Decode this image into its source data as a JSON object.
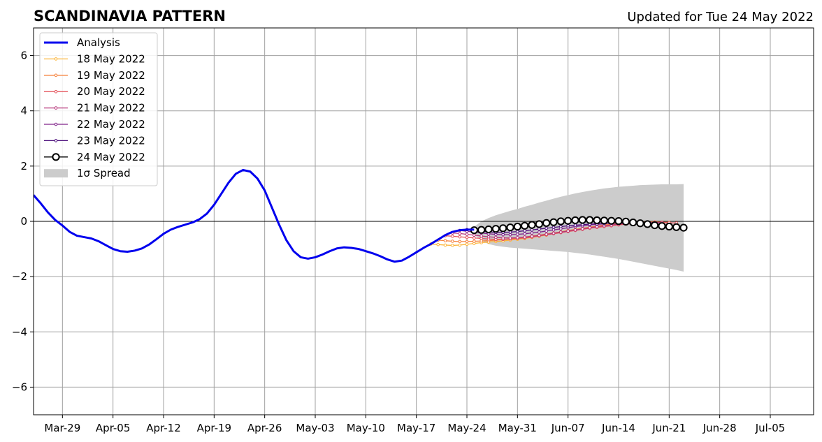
{
  "chart_data": {
    "type": "line",
    "title": "SCANDINAVIA PATTERN",
    "subtitle": "Updated for Tue 24 May 2022",
    "xlabel": "",
    "ylabel": "",
    "xlim": [
      "2022-03-25",
      "2022-07-11"
    ],
    "ylim": [
      -7,
      7
    ],
    "grid": true,
    "legend_position": "top-left",
    "x_ticks": [
      "Mar-29",
      "Apr-05",
      "Apr-12",
      "Apr-19",
      "Apr-26",
      "May-03",
      "May-10",
      "May-17",
      "May-24",
      "May-31",
      "Jun-07",
      "Jun-14",
      "Jun-21",
      "Jun-28",
      "Jul-05"
    ],
    "y_ticks": [
      {
        "value": 6,
        "label": "6"
      },
      {
        "value": 4,
        "label": "4"
      },
      {
        "value": 2,
        "label": "2"
      },
      {
        "value": 0,
        "label": "0"
      },
      {
        "value": -2,
        "label": "−2"
      },
      {
        "value": -4,
        "label": "−4"
      },
      {
        "value": -6,
        "label": "−6"
      }
    ],
    "legend": [
      "Analysis",
      "18 May 2022",
      "19 May 2022",
      "20 May 2022",
      "21 May 2022",
      "22 May 2022",
      "23 May 2022",
      "24 May 2022",
      "1σ Spread"
    ],
    "analysis": {
      "name": "Analysis",
      "color": "#0000ee",
      "start": "2022-03-25",
      "values": [
        0.95,
        0.65,
        0.32,
        0.05,
        -0.15,
        -0.38,
        -0.52,
        -0.57,
        -0.62,
        -0.72,
        -0.86,
        -1.0,
        -1.08,
        -1.1,
        -1.06,
        -0.98,
        -0.84,
        -0.65,
        -0.45,
        -0.3,
        -0.2,
        -0.12,
        -0.04,
        0.08,
        0.28,
        0.6,
        1.0,
        1.4,
        1.72,
        1.86,
        1.8,
        1.55,
        1.12,
        0.5,
        -0.12,
        -0.68,
        -1.08,
        -1.3,
        -1.35,
        -1.3,
        -1.2,
        -1.08,
        -0.98,
        -0.94,
        -0.96,
        -1.0,
        -1.08,
        -1.16,
        -1.26,
        -1.38,
        -1.46,
        -1.42,
        -1.28,
        -1.12,
        -0.96,
        -0.82,
        -0.66,
        -0.5,
        -0.38,
        -0.32,
        -0.3,
        -0.3
      ]
    },
    "forecasts": [
      {
        "name": "18 May 2022",
        "color": "#fcb436",
        "start": "2022-05-19",
        "values": [
          -0.82,
          -0.84,
          -0.86,
          -0.87,
          -0.86,
          -0.83,
          -0.8,
          -0.77,
          -0.75,
          -0.73,
          -0.71,
          -0.68,
          -0.65,
          -0.62,
          -0.58,
          -0.54,
          -0.5
        ]
      },
      {
        "name": "19 May 2022",
        "color": "#f6823c",
        "start": "2022-05-20",
        "values": [
          -0.68,
          -0.7,
          -0.72,
          -0.73,
          -0.73,
          -0.72,
          -0.71,
          -0.7,
          -0.68,
          -0.66,
          -0.63,
          -0.6,
          -0.57,
          -0.53,
          -0.5,
          -0.46,
          -0.42,
          -0.38,
          -0.33,
          -0.29,
          -0.25,
          -0.21,
          -0.17,
          -0.13,
          -0.1,
          -0.07,
          -0.05,
          -0.04,
          -0.03,
          -0.02,
          -0.02,
          -0.03,
          -0.04
        ]
      },
      {
        "name": "20 May 2022",
        "color": "#e4545c",
        "start": "2022-05-21",
        "values": [
          -0.52,
          -0.54,
          -0.56,
          -0.58,
          -0.6,
          -0.62,
          -0.64,
          -0.65,
          -0.65,
          -0.64,
          -0.62,
          -0.6,
          -0.57,
          -0.53,
          -0.49,
          -0.45,
          -0.41,
          -0.37,
          -0.33,
          -0.29,
          -0.25,
          -0.22,
          -0.19,
          -0.16,
          -0.13,
          -0.1,
          -0.08,
          -0.06,
          -0.05,
          -0.04,
          -0.04,
          -0.05,
          -0.06
        ]
      },
      {
        "name": "21 May 2022",
        "color": "#b6367a",
        "start": "2022-05-22",
        "values": [
          -0.42,
          -0.44,
          -0.47,
          -0.5,
          -0.53,
          -0.56,
          -0.58,
          -0.6,
          -0.6,
          -0.59,
          -0.57,
          -0.54,
          -0.51,
          -0.47,
          -0.43,
          -0.39,
          -0.35,
          -0.31,
          -0.27,
          -0.23,
          -0.19,
          -0.16,
          -0.13,
          -0.1,
          -0.08,
          -0.06,
          -0.05,
          -0.04,
          -0.04,
          -0.05
        ]
      },
      {
        "name": "22 May 2022",
        "color": "#80238a",
        "start": "2022-05-23",
        "values": [
          -0.33,
          -0.36,
          -0.39,
          -0.42,
          -0.45,
          -0.47,
          -0.48,
          -0.48,
          -0.47,
          -0.45,
          -0.42,
          -0.39,
          -0.35,
          -0.31,
          -0.27,
          -0.23,
          -0.19,
          -0.16,
          -0.13,
          -0.11,
          -0.09,
          -0.07,
          -0.06,
          -0.05,
          -0.05
        ]
      },
      {
        "name": "23 May 2022",
        "color": "#4a0c7a",
        "start": "2022-05-24",
        "values": [
          -0.3,
          -0.33,
          -0.36,
          -0.38,
          -0.4,
          -0.4,
          -0.39,
          -0.37,
          -0.34,
          -0.31,
          -0.28,
          -0.25,
          -0.22,
          -0.19,
          -0.16,
          -0.14,
          -0.12,
          -0.1,
          -0.09,
          -0.08
        ]
      },
      {
        "name": "24 May 2022",
        "color": "#000000",
        "start": "2022-05-25",
        "values": [
          -0.32,
          -0.31,
          -0.29,
          -0.27,
          -0.25,
          -0.22,
          -0.19,
          -0.16,
          -0.13,
          -0.1,
          -0.06,
          -0.03,
          0.0,
          0.02,
          0.04,
          0.05,
          0.05,
          0.04,
          0.03,
          0.02,
          0.01,
          -0.01,
          -0.04,
          -0.07,
          -0.1,
          -0.14,
          -0.17,
          -0.19,
          -0.21,
          -0.23
        ]
      }
    ],
    "spread": {
      "name": "1σ Spread",
      "color": "#cccccc",
      "start": "2022-05-25",
      "upper": [
        -0.2,
        0.0,
        0.12,
        0.22,
        0.3,
        0.38,
        0.45,
        0.53,
        0.6,
        0.68,
        0.75,
        0.82,
        0.89,
        0.95,
        1.01,
        1.06,
        1.11,
        1.15,
        1.19,
        1.22,
        1.25,
        1.27,
        1.29,
        1.31,
        1.32,
        1.33,
        1.34,
        1.34,
        1.34,
        1.35
      ],
      "lower": [
        -0.48,
        -0.7,
        -0.82,
        -0.88,
        -0.92,
        -0.95,
        -0.97,
        -0.99,
        -1.01,
        -1.03,
        -1.05,
        -1.07,
        -1.09,
        -1.11,
        -1.14,
        -1.17,
        -1.2,
        -1.24,
        -1.28,
        -1.32,
        -1.36,
        -1.41,
        -1.46,
        -1.51,
        -1.56,
        -1.61,
        -1.66,
        -1.71,
        -1.76,
        -1.82
      ]
    }
  }
}
